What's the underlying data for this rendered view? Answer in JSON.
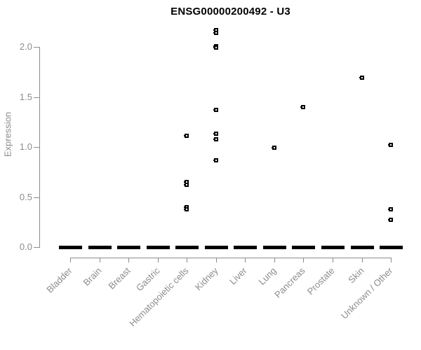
{
  "title": "ENSG00000200492 - U3",
  "ylabel": "Expression",
  "colors": {
    "marker": "#000000",
    "axis": "#8c8c8c",
    "tick_text": "#8c8c8c",
    "title_text": "#000000",
    "background": "#ffffff"
  },
  "chart_data": {
    "type": "scatter",
    "title": "ENSG00000200492 - U3",
    "xlabel": "",
    "ylabel": "Expression",
    "ylim": [
      0,
      2.2
    ],
    "yticks": [
      0.0,
      0.5,
      1.0,
      1.5,
      2.0
    ],
    "grid": false,
    "legend": false,
    "x_tick_rotation": 45,
    "categories": [
      "Bladder",
      "Brain",
      "Breast",
      "Gastric",
      "Hematopoietic cells",
      "Kidney",
      "Liver",
      "Lung",
      "Pancreas",
      "Prostate",
      "Skin",
      "Unknown / Other"
    ],
    "series": [
      {
        "category": "Bladder",
        "points": [],
        "zero_cluster": true
      },
      {
        "category": "Brain",
        "points": [],
        "zero_cluster": true
      },
      {
        "category": "Breast",
        "points": [],
        "zero_cluster": true
      },
      {
        "category": "Gastric",
        "points": [],
        "zero_cluster": true
      },
      {
        "category": "Hematopoietic cells",
        "points": [
          1.11,
          0.65,
          0.62,
          0.4,
          0.38
        ],
        "zero_cluster": true
      },
      {
        "category": "Kidney",
        "points": [
          2.17,
          2.14,
          2.01,
          1.99,
          1.37,
          1.13,
          1.08,
          0.87
        ],
        "zero_cluster": true
      },
      {
        "category": "Liver",
        "points": [],
        "zero_cluster": true
      },
      {
        "category": "Lung",
        "points": [
          0.99
        ],
        "zero_cluster": true
      },
      {
        "category": "Pancreas",
        "points": [
          1.4
        ],
        "zero_cluster": true
      },
      {
        "category": "Prostate",
        "points": [],
        "zero_cluster": true
      },
      {
        "category": "Skin",
        "points": [
          1.69
        ],
        "zero_cluster": true
      },
      {
        "category": "Unknown / Other",
        "points": [
          1.02,
          0.38,
          0.27
        ],
        "zero_cluster": true
      }
    ],
    "zero_cluster_note": "every category shows a dense horizontal dash of overlapping points at expression 0.0"
  }
}
